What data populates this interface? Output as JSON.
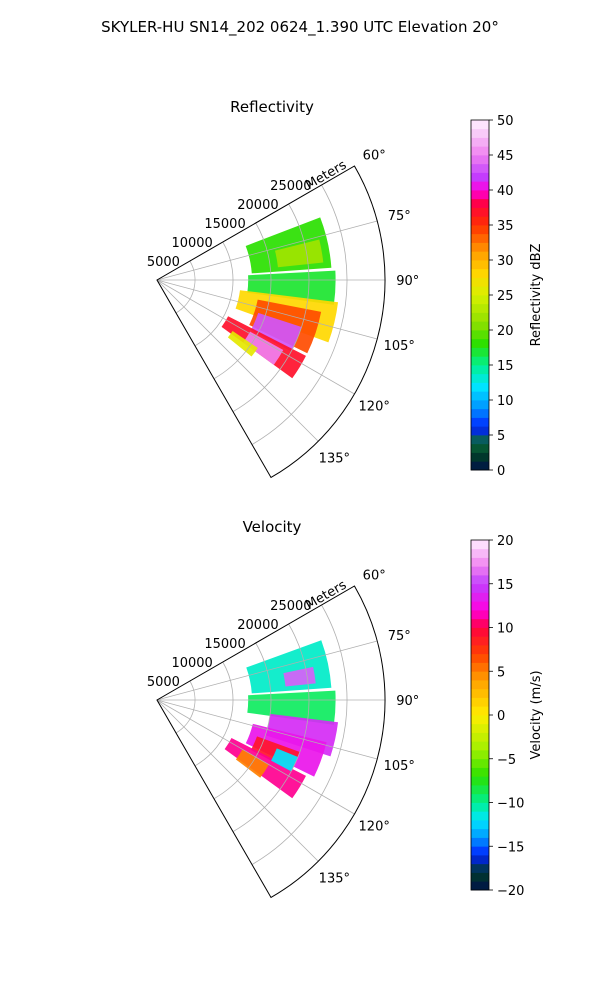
{
  "figure_title": "SKYLER-HU  SN14_202  0624_1.390 UTC Elevation 20°",
  "chart_data": [
    {
      "type": "heatmap",
      "projection": "polar-sector",
      "title": "Reflectivity",
      "radial_label": "Meters",
      "radial_ticks": [
        5000,
        10000,
        15000,
        20000,
        25000
      ],
      "radial_tick_labels": [
        "5000",
        "10000",
        "15000",
        "20000",
        "25000"
      ],
      "rlim": [
        0,
        30000
      ],
      "angular_ticks": [
        60,
        75,
        90,
        105,
        120,
        135
      ],
      "angular_tick_labels": [
        "60°",
        "75°",
        "90°",
        "105°",
        "120°",
        "135°"
      ],
      "thetalim": [
        60,
        150
      ],
      "grid": true,
      "colorbar": {
        "label": "Reflectivity dBZ",
        "range": [
          0,
          50
        ],
        "ticks": [
          0,
          5,
          10,
          15,
          20,
          25,
          30,
          35,
          40,
          45,
          50
        ],
        "tick_labels": [
          "0",
          "5",
          "10",
          "15",
          "20",
          "25",
          "30",
          "35",
          "40",
          "45",
          "50"
        ],
        "colors": [
          "#00104a",
          "#003a2a",
          "#0a6a3a",
          "#0020ff",
          "#0096ff",
          "#00e6ff",
          "#00f090",
          "#2ae000",
          "#8ee000",
          "#d8f000",
          "#ffd800",
          "#ffa000",
          "#ff3000",
          "#ff0040",
          "#ff00e0",
          "#c040ff",
          "#f080f0",
          "#f8c8f8",
          "#fff0ff"
        ],
        "stops": [
          0,
          2,
          4,
          6,
          9,
          12,
          15,
          18,
          21,
          25,
          28,
          31,
          35,
          38,
          40,
          42,
          45,
          48,
          50
        ]
      },
      "echo_regions": [
        {
          "az": [
            69,
            86
          ],
          "r": [
            12500,
            23000
          ],
          "value": 18
        },
        {
          "az": [
            76,
            84
          ],
          "r": [
            16000,
            22000
          ],
          "value": 22
        },
        {
          "az": [
            87,
            98
          ],
          "r": [
            12000,
            23500
          ],
          "value": 17
        },
        {
          "az": [
            97,
            110
          ],
          "r": [
            11000,
            24000
          ],
          "value": 28
        },
        {
          "az": [
            101,
            116
          ],
          "r": [
            13500,
            22000
          ],
          "value": 34
        },
        {
          "az": [
            108,
            118
          ],
          "r": [
            14000,
            20000
          ],
          "value": 43
        },
        {
          "az": [
            117,
            126
          ],
          "r": [
            10500,
            22000
          ],
          "value": 37
        },
        {
          "az": [
            119,
            126
          ],
          "r": [
            14000,
            19000
          ],
          "value": 45
        },
        {
          "az": [
            124,
            129
          ],
          "r": [
            12000,
            16000
          ],
          "value": 26
        }
      ]
    },
    {
      "type": "heatmap",
      "projection": "polar-sector",
      "title": "Velocity",
      "radial_label": "Meters",
      "radial_ticks": [
        5000,
        10000,
        15000,
        20000,
        25000
      ],
      "radial_tick_labels": [
        "5000",
        "10000",
        "15000",
        "20000",
        "25000"
      ],
      "rlim": [
        0,
        30000
      ],
      "angular_ticks": [
        60,
        75,
        90,
        105,
        120,
        135
      ],
      "angular_tick_labels": [
        "60°",
        "75°",
        "90°",
        "105°",
        "120°",
        "135°"
      ],
      "thetalim": [
        60,
        150
      ],
      "grid": true,
      "colorbar": {
        "label": "Velocity (m/s)",
        "range": [
          -20,
          20
        ],
        "ticks": [
          -20,
          -15,
          -10,
          -5,
          0,
          5,
          10,
          15,
          20
        ],
        "tick_labels": [
          "−20",
          "−15",
          "−10",
          "−5",
          "0",
          "5",
          "10",
          "15",
          "20"
        ],
        "colors": [
          "#00104a",
          "#003a2a",
          "#0020ff",
          "#0096ff",
          "#00e6ff",
          "#00f090",
          "#2ae000",
          "#a0f000",
          "#ffee00",
          "#ffa000",
          "#ff4000",
          "#ff0040",
          "#ff00e0",
          "#c040ff",
          "#f080f0",
          "#fff0ff"
        ],
        "stops": [
          -20,
          -18,
          -16,
          -14,
          -12,
          -10,
          -7,
          -4,
          0,
          4,
          7,
          10,
          12,
          15,
          17,
          20
        ]
      },
      "echo_regions": [
        {
          "az": [
            70,
            86
          ],
          "r": [
            12500,
            23000
          ],
          "value": -11
        },
        {
          "az": [
            78,
            84
          ],
          "r": [
            17000,
            21000
          ],
          "value": 16
        },
        {
          "az": [
            87,
            98
          ],
          "r": [
            12000,
            23500
          ],
          "value": -9
        },
        {
          "az": [
            97,
            108
          ],
          "r": [
            15000,
            24000
          ],
          "value": 14
        },
        {
          "az": [
            104,
            116
          ],
          "r": [
            13000,
            23000
          ],
          "value": 13
        },
        {
          "az": [
            110,
            118
          ],
          "r": [
            14000,
            20000
          ],
          "value": 9
        },
        {
          "az": [
            117,
            126
          ],
          "r": [
            11000,
            22000
          ],
          "value": 11
        },
        {
          "az": [
            120,
            127
          ],
          "r": [
            13000,
            17000
          ],
          "value": 5
        },
        {
          "az": [
            112,
            118
          ],
          "r": [
            17000,
            20000
          ],
          "value": -12
        }
      ]
    }
  ]
}
